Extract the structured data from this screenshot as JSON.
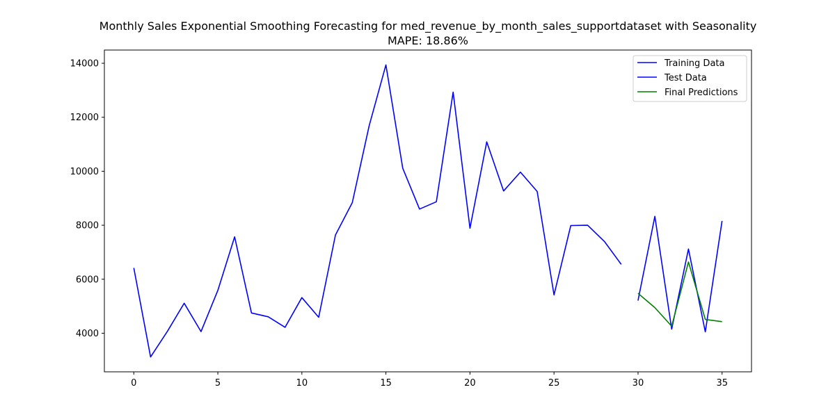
{
  "chart_data": {
    "type": "line",
    "title": "Monthly Sales Exponential Smoothing Forecasting for med_revenue_by_month_sales_supportdataset with Seasonality",
    "subtitle": "MAPE: 18.86%",
    "xlabel": "",
    "ylabel": "",
    "xlim": [
      -1.75,
      36.75
    ],
    "ylim": [
      2570,
      14490
    ],
    "xticks": [
      0,
      5,
      10,
      15,
      20,
      25,
      30,
      35
    ],
    "yticks": [
      4000,
      6000,
      8000,
      10000,
      12000,
      14000
    ],
    "grid": false,
    "legend_position": "top-right",
    "series": [
      {
        "name": "Training Data",
        "color": "#0000ff",
        "x": [
          0,
          1,
          2,
          3,
          4,
          5,
          6,
          7,
          8,
          9,
          10,
          11,
          12,
          13,
          14,
          15,
          16,
          17,
          18,
          19,
          20,
          21,
          22,
          23,
          24,
          25,
          26,
          27,
          28,
          29
        ],
        "values": [
          6420,
          3120,
          4070,
          5110,
          4060,
          5590,
          7570,
          4750,
          4610,
          4220,
          5320,
          4590,
          7640,
          8840,
          11680,
          13940,
          10110,
          8600,
          8870,
          12930,
          7890,
          11090,
          9270,
          9970,
          9250,
          5420,
          7990,
          8000,
          7400,
          6550
        ]
      },
      {
        "name": "Test Data",
        "color": "#0000ff",
        "x": [
          30,
          31,
          32,
          33,
          34,
          35
        ],
        "values": [
          5210,
          8330,
          4150,
          7120,
          4050,
          8160
        ]
      },
      {
        "name": "Final Predictions",
        "color": "#008000",
        "x": [
          30,
          31,
          32,
          33,
          34,
          35
        ],
        "values": [
          5480,
          4950,
          4260,
          6640,
          4510,
          4430
        ]
      }
    ]
  }
}
